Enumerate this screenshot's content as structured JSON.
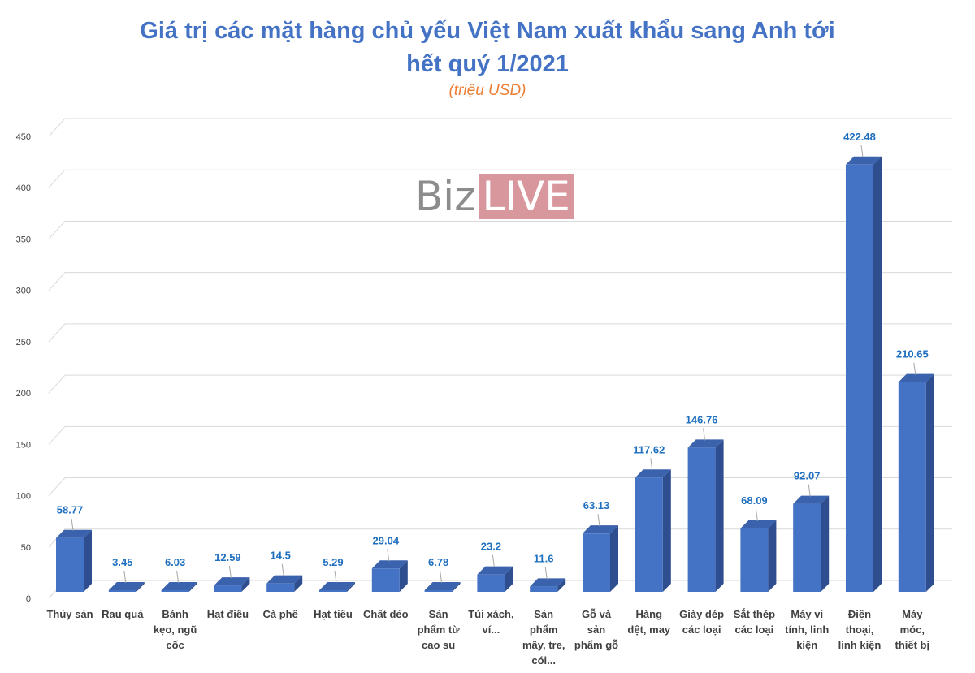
{
  "chart_data": {
    "type": "bar",
    "title_line1": "Giá trị các mặt hàng chủ yếu Việt Nam xuất khẩu sang Anh tới",
    "title_line2": "hết quý 1/2021",
    "unit_label": "(triệu USD)",
    "watermark_biz": "Biz",
    "watermark_live": "LIVE",
    "ylim": [
      0,
      450
    ],
    "yticks": [
      0,
      50,
      100,
      150,
      200,
      250,
      300,
      350,
      400,
      450
    ],
    "grid": true,
    "colors": {
      "bar_front": "#4472c4",
      "bar_side": "#2e4e8f",
      "bar_top": "#3a62ad",
      "title": "#4472c4",
      "unit": "#ed7d31",
      "data_label": "#1f6fbf"
    },
    "categories": [
      [
        "Thủy sản"
      ],
      [
        "Rau quả"
      ],
      [
        "Bánh",
        "kẹo, ngũ",
        "cốc"
      ],
      [
        "Hạt điều"
      ],
      [
        "Cà phê"
      ],
      [
        "Hạt tiêu"
      ],
      [
        "Chất dẻo"
      ],
      [
        "Sản",
        "phẩm từ",
        "cao su"
      ],
      [
        "Túi xách,",
        "ví..."
      ],
      [
        "Sản",
        "phẩm",
        "mây, tre,",
        "cói..."
      ],
      [
        "Gỗ và",
        "sản",
        "phẩm gỗ"
      ],
      [
        "Hàng",
        "dệt, may"
      ],
      [
        "Giày dép",
        "các loại"
      ],
      [
        "Sắt thép",
        "các loại"
      ],
      [
        "Máy vi",
        "tính, linh",
        "kiện"
      ],
      [
        "Điện",
        "thoại,",
        "linh kiện"
      ],
      [
        "Máy",
        "móc,",
        "thiết bị"
      ]
    ],
    "values": [
      58.77,
      3.45,
      6.03,
      12.59,
      14.5,
      5.29,
      29.04,
      6.78,
      23.2,
      11.6,
      63.13,
      117.62,
      146.76,
      68.09,
      92.07,
      422.48,
      210.65
    ],
    "value_labels": [
      "58.77",
      "3.45",
      "6.03",
      "12.59",
      "14.5",
      "5.29",
      "29.04",
      "6.78",
      "23.2",
      "11.6",
      "63.13",
      "117.62",
      "146.76",
      "68.09",
      "92.07",
      "422.48",
      "210.65"
    ]
  }
}
